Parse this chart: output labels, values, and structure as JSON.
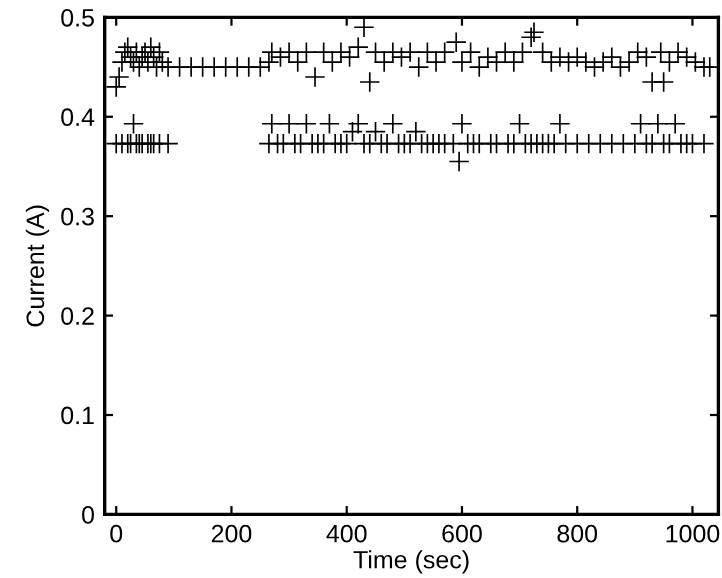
{
  "chart_data": {
    "type": "scatter",
    "xlabel": "Time (sec)",
    "ylabel": "Current (A)",
    "xlim": [
      -20,
      1045
    ],
    "ylim": [
      0,
      0.5
    ],
    "xticks": [
      0,
      200,
      400,
      600,
      800,
      1000
    ],
    "yticks": [
      0,
      0.1,
      0.2,
      0.3,
      0.4,
      0.5
    ],
    "grid": false,
    "marker": "cross",
    "series": [
      {
        "color": "#000000",
        "x": [
          0,
          5,
          10,
          15,
          20,
          25,
          30,
          35,
          40,
          45,
          50,
          55,
          60,
          65,
          70,
          75,
          80,
          90,
          110,
          130,
          150,
          170,
          190,
          210,
          230,
          250,
          265,
          270,
          285,
          300,
          315,
          330,
          345,
          360,
          375,
          390,
          405,
          420,
          430,
          440,
          450,
          465,
          480,
          495,
          510,
          525,
          540,
          555,
          570,
          590,
          600,
          615,
          630,
          645,
          660,
          675,
          690,
          705,
          720,
          725,
          740,
          755,
          770,
          785,
          800,
          815,
          830,
          845,
          860,
          875,
          890,
          905,
          920,
          930,
          945,
          950,
          960,
          975,
          990,
          1005,
          1020,
          1030
        ],
        "values": [
          0.43,
          0.44,
          0.455,
          0.465,
          0.47,
          0.46,
          0.455,
          0.465,
          0.45,
          0.46,
          0.465,
          0.455,
          0.47,
          0.46,
          0.45,
          0.465,
          0.455,
          0.45,
          0.45,
          0.45,
          0.45,
          0.45,
          0.45,
          0.45,
          0.45,
          0.45,
          0.455,
          0.465,
          0.46,
          0.465,
          0.455,
          0.465,
          0.44,
          0.465,
          0.455,
          0.465,
          0.46,
          0.47,
          0.49,
          0.435,
          0.465,
          0.455,
          0.465,
          0.46,
          0.465,
          0.45,
          0.465,
          0.455,
          0.465,
          0.475,
          0.455,
          0.465,
          0.45,
          0.46,
          0.455,
          0.465,
          0.455,
          0.465,
          0.48,
          0.485,
          0.465,
          0.455,
          0.46,
          0.455,
          0.46,
          0.455,
          0.45,
          0.455,
          0.46,
          0.45,
          0.455,
          0.465,
          0.46,
          0.435,
          0.465,
          0.435,
          0.455,
          0.465,
          0.46,
          0.455,
          0.45,
          0.45
        ]
      },
      {
        "color": "#000000",
        "x": [
          0,
          10,
          20,
          25,
          30,
          35,
          40,
          45,
          55,
          60,
          65,
          75,
          90,
          265,
          270,
          280,
          290,
          300,
          310,
          320,
          330,
          340,
          350,
          360,
          370,
          380,
          390,
          400,
          410,
          420,
          430,
          440,
          450,
          460,
          470,
          480,
          490,
          500,
          510,
          520,
          530,
          540,
          550,
          560,
          570,
          585,
          595,
          600,
          610,
          620,
          630,
          650,
          660,
          680,
          690,
          700,
          710,
          720,
          730,
          740,
          750,
          760,
          770,
          780,
          800,
          820,
          840,
          860,
          880,
          900,
          910,
          920,
          930,
          940,
          950,
          960,
          970,
          980,
          990,
          1000,
          1020
        ],
        "values": [
          0.373,
          0.373,
          0.373,
          0.373,
          0.393,
          0.373,
          0.373,
          0.373,
          0.373,
          0.373,
          0.373,
          0.373,
          0.373,
          0.373,
          0.393,
          0.373,
          0.373,
          0.393,
          0.373,
          0.373,
          0.393,
          0.373,
          0.373,
          0.373,
          0.393,
          0.373,
          0.373,
          0.373,
          0.385,
          0.393,
          0.373,
          0.373,
          0.385,
          0.373,
          0.373,
          0.393,
          0.373,
          0.373,
          0.373,
          0.385,
          0.373,
          0.373,
          0.373,
          0.373,
          0.373,
          0.373,
          0.355,
          0.393,
          0.373,
          0.373,
          0.373,
          0.373,
          0.373,
          0.373,
          0.373,
          0.393,
          0.373,
          0.373,
          0.373,
          0.373,
          0.373,
          0.373,
          0.393,
          0.373,
          0.373,
          0.373,
          0.373,
          0.373,
          0.373,
          0.373,
          0.393,
          0.373,
          0.373,
          0.393,
          0.373,
          0.373,
          0.393,
          0.373,
          0.373,
          0.373,
          0.373
        ]
      }
    ]
  }
}
